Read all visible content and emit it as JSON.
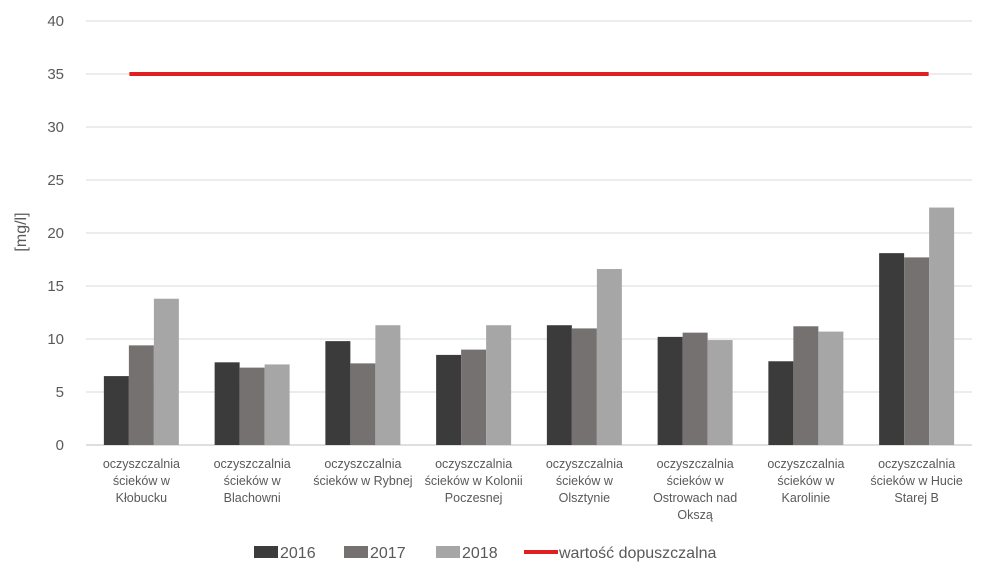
{
  "chart_data": {
    "type": "bar",
    "title": "",
    "xlabel": "",
    "ylabel": "[mg/l]",
    "ylim": [
      0,
      40
    ],
    "yticks": [
      0,
      5,
      10,
      15,
      20,
      25,
      30,
      35,
      40
    ],
    "grid": true,
    "legend_position": "bottom",
    "categories": [
      [
        "oczyszczalnia",
        "ścieków w",
        "Kłobucku"
      ],
      [
        "oczyszczalnia",
        "ścieków w",
        "Blachowni"
      ],
      [
        "oczyszczalnia",
        "ścieków w Rybnej"
      ],
      [
        "oczyszczalnia",
        "ścieków w Kolonii",
        "Poczesnej"
      ],
      [
        "oczyszczalnia",
        "ścieków w",
        "Olsztynie"
      ],
      [
        "oczyszczalnia",
        "ścieków w",
        "Ostrowach nad",
        "Okszą"
      ],
      [
        "oczyszczalnia",
        "ścieków w",
        "Karolinie"
      ],
      [
        "oczyszczalnia",
        "ścieków w Hucie",
        "Starej B"
      ]
    ],
    "series": [
      {
        "name": "2016",
        "color": "#3b3b3b",
        "values": [
          6.5,
          7.8,
          9.8,
          8.5,
          11.3,
          10.2,
          7.9,
          18.1
        ]
      },
      {
        "name": "2017",
        "color": "#767171",
        "values": [
          9.4,
          7.3,
          7.7,
          9.0,
          11.0,
          10.6,
          11.2,
          17.7
        ]
      },
      {
        "name": "2018",
        "color": "#a6a6a6",
        "values": [
          13.8,
          7.6,
          11.3,
          11.3,
          16.6,
          9.9,
          10.7,
          22.4
        ]
      }
    ],
    "reference_line": {
      "name": "wartość dopuszczalna",
      "value": 35,
      "color": "#e02020"
    }
  }
}
